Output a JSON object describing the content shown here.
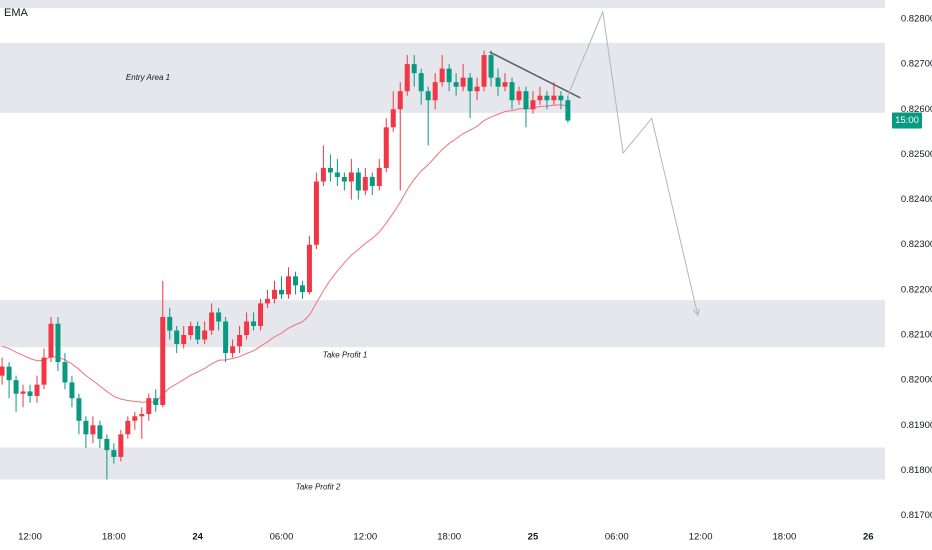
{
  "chart_data": {
    "type": "candlestick",
    "xlim": [
      -2.15,
      61.2
    ],
    "ylim": [
      0.817,
      0.82842
    ],
    "xticks": [
      {
        "value": 0,
        "label": "12:00"
      },
      {
        "value": 6,
        "label": "18:00"
      },
      {
        "value": 12,
        "label": "24"
      },
      {
        "value": 18,
        "label": "06:00"
      },
      {
        "value": 24,
        "label": "12:00"
      },
      {
        "value": 30,
        "label": "18:00"
      },
      {
        "value": 36,
        "label": "25"
      },
      {
        "value": 42,
        "label": "06:00"
      },
      {
        "value": 48,
        "label": "12:00"
      },
      {
        "value": 54,
        "label": "18:00"
      },
      {
        "value": 60,
        "label": "26"
      }
    ],
    "yticks": [
      {
        "value": 0.817,
        "label": "0.81700"
      },
      {
        "value": 0.818,
        "label": "0.81800"
      },
      {
        "value": 0.819,
        "label": "0.81900"
      },
      {
        "value": 0.82,
        "label": "0.82000"
      },
      {
        "value": 0.821,
        "label": "0.82100"
      },
      {
        "value": 0.822,
        "label": "0.82200"
      },
      {
        "value": 0.823,
        "label": "0.82300"
      },
      {
        "value": 0.824,
        "label": "0.82400"
      },
      {
        "value": 0.825,
        "label": "0.82500"
      },
      {
        "value": 0.826,
        "label": "0.82600"
      },
      {
        "value": 0.827,
        "label": "0.82700"
      },
      {
        "value": 0.828,
        "label": "0.82800"
      }
    ],
    "up_color": "#f23645",
    "down_color": "#089981",
    "x": [
      -2,
      -1.5,
      -1,
      -0.5,
      0,
      0.5,
      1,
      1.5,
      2,
      2.5,
      3,
      3.5,
      4,
      4.5,
      5,
      5.5,
      6,
      6.5,
      7,
      7.5,
      8,
      8.5,
      9,
      9.5,
      10,
      10.5,
      11,
      11.5,
      12,
      12.5,
      13,
      13.5,
      14,
      14.5,
      15,
      15.5,
      16,
      16.5,
      17,
      17.5,
      18,
      18.5,
      19,
      19.5,
      20,
      20.5,
      21,
      21.5,
      22,
      22.5,
      23,
      23.5,
      24,
      24.5,
      25,
      25.5,
      26,
      26.5,
      27,
      27.5,
      28,
      28.5,
      29,
      29.5,
      30,
      30.5,
      31,
      31.5,
      32,
      32.5,
      33,
      33.5,
      34,
      34.5,
      35,
      35.5,
      36,
      36.5,
      37,
      37.5,
      38,
      38.5
    ],
    "open": [
      0.8201,
      0.8203,
      0.82,
      0.8197,
      0.81975,
      0.81965,
      0.8199,
      0.8205,
      0.82125,
      0.8204,
      0.81995,
      0.8196,
      0.8191,
      0.8188,
      0.819,
      0.8187,
      0.81845,
      0.8183,
      0.8188,
      0.8191,
      0.8192,
      0.81925,
      0.8196,
      0.81945,
      0.8214,
      0.8211,
      0.8208,
      0.821,
      0.8212,
      0.8209,
      0.8211,
      0.8215,
      0.8213,
      0.8206,
      0.82075,
      0.821,
      0.8213,
      0.8212,
      0.8217,
      0.8218,
      0.822,
      0.8219,
      0.8223,
      0.8221,
      0.82195,
      0.823,
      0.8244,
      0.8247,
      0.8246,
      0.8245,
      0.8244,
      0.8246,
      0.8242,
      0.8245,
      0.8243,
      0.8247,
      0.8256,
      0.826,
      0.8264,
      0.827,
      0.8268,
      0.8264,
      0.8262,
      0.8266,
      0.8269,
      0.8266,
      0.8265,
      0.8267,
      0.8264,
      0.8265,
      0.8272,
      0.8267,
      0.8265,
      0.8266,
      0.8262,
      0.8264,
      0.826,
      0.8262,
      0.8263,
      0.8262,
      0.8263,
      0.8262
    ],
    "high": [
      0.8205,
      0.8204,
      0.8201,
      0.8199,
      0.8199,
      0.8201,
      0.8207,
      0.8214,
      0.8214,
      0.8206,
      0.8201,
      0.8197,
      0.8192,
      0.8192,
      0.8191,
      0.8188,
      0.8186,
      0.8189,
      0.8192,
      0.8193,
      0.8194,
      0.8197,
      0.8198,
      0.8222,
      0.8216,
      0.8212,
      0.8212,
      0.8213,
      0.8213,
      0.8213,
      0.8217,
      0.8216,
      0.8214,
      0.8209,
      0.8212,
      0.8215,
      0.8215,
      0.8218,
      0.822,
      0.8222,
      0.8223,
      0.8225,
      0.8224,
      0.8222,
      0.8232,
      0.8246,
      0.8252,
      0.825,
      0.8249,
      0.8246,
      0.8249,
      0.8247,
      0.8247,
      0.8246,
      0.8249,
      0.8258,
      0.8264,
      0.8266,
      0.8272,
      0.8272,
      0.8269,
      0.8265,
      0.8268,
      0.8272,
      0.827,
      0.8268,
      0.827,
      0.8268,
      0.8267,
      0.8273,
      0.8273,
      0.8269,
      0.8268,
      0.8267,
      0.8265,
      0.8265,
      0.8264,
      0.8265,
      0.8264,
      0.8266,
      0.8264,
      0.8263
    ],
    "low": [
      0.8199,
      0.8196,
      0.8193,
      0.8194,
      0.8195,
      0.8195,
      0.8198,
      0.8204,
      0.8202,
      0.8198,
      0.8194,
      0.8188,
      0.8185,
      0.8186,
      0.8185,
      0.8178,
      0.81815,
      0.8182,
      0.8187,
      0.8189,
      0.8187,
      0.8191,
      0.8193,
      0.8194,
      0.8209,
      0.8206,
      0.8207,
      0.8209,
      0.8208,
      0.8208,
      0.821,
      0.8211,
      0.8204,
      0.8205,
      0.8206,
      0.8209,
      0.8211,
      0.8211,
      0.8216,
      0.8217,
      0.8218,
      0.8218,
      0.8219,
      0.8218,
      0.8219,
      0.8229,
      0.8243,
      0.8244,
      0.8243,
      0.8242,
      0.824,
      0.824,
      0.8241,
      0.8241,
      0.8242,
      0.8246,
      0.8255,
      0.8242,
      0.8263,
      0.8265,
      0.8261,
      0.8252,
      0.826,
      0.8265,
      0.8264,
      0.8263,
      0.8264,
      0.8258,
      0.8262,
      0.8264,
      0.8265,
      0.8263,
      0.8264,
      0.826,
      0.8261,
      0.8256,
      0.8259,
      0.8261,
      0.826,
      0.8261,
      0.826,
      0.8257
    ],
    "close": [
      0.8203,
      0.82,
      0.8197,
      0.81975,
      0.81965,
      0.8199,
      0.8205,
      0.82125,
      0.8204,
      0.81995,
      0.8196,
      0.8191,
      0.8188,
      0.819,
      0.8187,
      0.81845,
      0.8183,
      0.8188,
      0.8191,
      0.8192,
      0.81925,
      0.8196,
      0.81945,
      0.8214,
      0.8211,
      0.8208,
      0.821,
      0.8212,
      0.8209,
      0.8211,
      0.8215,
      0.8213,
      0.8206,
      0.82075,
      0.821,
      0.8213,
      0.8212,
      0.8217,
      0.8218,
      0.822,
      0.8219,
      0.8223,
      0.8221,
      0.82195,
      0.823,
      0.8244,
      0.8247,
      0.8246,
      0.8245,
      0.8244,
      0.8246,
      0.8242,
      0.8245,
      0.8243,
      0.8247,
      0.8256,
      0.826,
      0.8264,
      0.827,
      0.8268,
      0.8264,
      0.8262,
      0.8266,
      0.8269,
      0.8266,
      0.8265,
      0.8267,
      0.8264,
      0.8265,
      0.8272,
      0.8267,
      0.8265,
      0.8266,
      0.8262,
      0.8264,
      0.826,
      0.8262,
      0.8263,
      0.8262,
      0.8263,
      0.8262,
      0.82575
    ],
    "series": [
      {
        "name": "EMA",
        "color": "#f0737f",
        "values": [
          0.82075,
          0.8207,
          0.82062,
          0.82055,
          0.82048,
          0.82043,
          0.82044,
          0.82052,
          0.82051,
          0.82045,
          0.82036,
          0.82024,
          0.8201,
          0.81999,
          0.81987,
          0.81975,
          0.81964,
          0.81958,
          0.81955,
          0.81953,
          0.81951,
          0.81952,
          0.81951,
          0.81969,
          0.81983,
          0.81992,
          0.82001,
          0.82011,
          0.82018,
          0.82026,
          0.82036,
          0.82044,
          0.82045,
          0.82048,
          0.82052,
          0.82059,
          0.82065,
          0.82075,
          0.82085,
          0.82096,
          0.82104,
          0.82115,
          0.82123,
          0.82129,
          0.82144,
          0.82171,
          0.82198,
          0.82222,
          0.82242,
          0.8226,
          0.82277,
          0.82289,
          0.82303,
          0.82314,
          0.82328,
          0.82348,
          0.8237,
          0.82394,
          0.82422,
          0.82445,
          0.82463,
          0.82477,
          0.82494,
          0.82511,
          0.82524,
          0.82535,
          0.82546,
          0.82554,
          0.82562,
          0.82575,
          0.82583,
          0.82589,
          0.82595,
          0.82597,
          0.82601,
          0.82601,
          0.82603,
          0.82606,
          0.82607,
          0.82609,
          0.8261,
          0.82607
        ]
      }
    ],
    "zones": [
      {
        "ylim": [
          0.82824,
          0.82842
        ]
      },
      {
        "name": "Entry Area 1",
        "ylim": [
          0.82592,
          0.82747
        ]
      },
      {
        "name": "Take Profit 1",
        "ylim": [
          0.82073,
          0.82177
        ]
      },
      {
        "name": "Take Profit 2",
        "ylim": [
          0.8178,
          0.81851
        ]
      }
    ],
    "trendline": {
      "x": [
        32.9,
        39.4
      ],
      "y": [
        0.82727,
        0.82625
      ]
    },
    "projection": {
      "x": [
        38.5,
        41.0,
        42.45,
        44.5,
        47.8
      ],
      "y": [
        0.82631,
        0.82816,
        0.82503,
        0.8258,
        0.82144
      ]
    },
    "countdown": "15:00"
  }
}
